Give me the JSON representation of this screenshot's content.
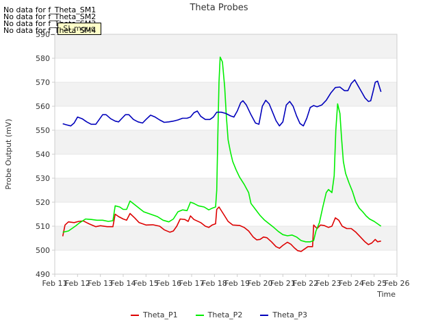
{
  "messages": [
    "No data for f_Theta_SM1",
    "No data for f_Theta_SM2",
    "No data for f_Theta_SM3",
    "No data for f_Theta_SM4"
  ],
  "badge": "SI_mguq",
  "chart_data": {
    "type": "line",
    "title": "Theta Probes",
    "xlabel": "Time",
    "ylabel": "Probe Output (mV)",
    "ylim": [
      490,
      590
    ],
    "yticks": [
      490,
      500,
      510,
      520,
      530,
      540,
      550,
      560,
      570,
      580,
      590
    ],
    "xlim": [
      11,
      26
    ],
    "xticks": [
      {
        "day": 11,
        "label": "Feb 11"
      },
      {
        "day": 12,
        "label": "Feb 12"
      },
      {
        "day": 13,
        "label": "Feb 13"
      },
      {
        "day": 14,
        "label": "Feb 14"
      },
      {
        "day": 15,
        "label": "Feb 15"
      },
      {
        "day": 16,
        "label": "Feb 16"
      },
      {
        "day": 17,
        "label": "Feb 17"
      },
      {
        "day": 18,
        "label": "Feb 18"
      },
      {
        "day": 19,
        "label": "Feb 19"
      },
      {
        "day": 20,
        "label": "Feb 20"
      },
      {
        "day": 21,
        "label": "Feb 21"
      },
      {
        "day": 22,
        "label": "Feb 22"
      },
      {
        "day": 23,
        "label": "Feb 23"
      },
      {
        "day": 24,
        "label": "Feb 24"
      },
      {
        "day": 25,
        "label": "Feb 25"
      },
      {
        "day": 26,
        "label": "Feb 26"
      }
    ],
    "grid": "horizontal bands",
    "legend_position": "bottom",
    "series": [
      {
        "name": "Theta_P1",
        "color": "#dd0000",
        "points": [
          [
            11.35,
            505.8
          ],
          [
            11.45,
            510.5
          ],
          [
            11.6,
            511.8
          ],
          [
            11.85,
            511.5
          ],
          [
            12.05,
            512.0
          ],
          [
            12.25,
            512.2
          ],
          [
            12.5,
            511.0
          ],
          [
            12.8,
            509.8
          ],
          [
            13.0,
            510.2
          ],
          [
            13.3,
            509.8
          ],
          [
            13.55,
            509.8
          ],
          [
            13.65,
            515.0
          ],
          [
            13.8,
            514.0
          ],
          [
            14.0,
            513.0
          ],
          [
            14.15,
            512.5
          ],
          [
            14.3,
            515.3
          ],
          [
            14.5,
            513.5
          ],
          [
            14.7,
            511.5
          ],
          [
            15.0,
            510.5
          ],
          [
            15.3,
            510.6
          ],
          [
            15.6,
            510.0
          ],
          [
            15.8,
            508.5
          ],
          [
            16.05,
            507.5
          ],
          [
            16.2,
            508.0
          ],
          [
            16.35,
            510.0
          ],
          [
            16.5,
            513.0
          ],
          [
            16.7,
            512.8
          ],
          [
            16.85,
            512.0
          ],
          [
            16.95,
            514.3
          ],
          [
            17.1,
            512.8
          ],
          [
            17.4,
            511.5
          ],
          [
            17.6,
            510.0
          ],
          [
            17.75,
            509.5
          ],
          [
            17.9,
            510.5
          ],
          [
            18.05,
            511.0
          ],
          [
            18.1,
            517.0
          ],
          [
            18.2,
            518.0
          ],
          [
            18.4,
            515.0
          ],
          [
            18.6,
            512.0
          ],
          [
            18.8,
            510.5
          ],
          [
            19.1,
            510.3
          ],
          [
            19.3,
            509.5
          ],
          [
            19.5,
            508.0
          ],
          [
            19.7,
            505.5
          ],
          [
            19.85,
            504.3
          ],
          [
            20.0,
            504.5
          ],
          [
            20.15,
            505.5
          ],
          [
            20.3,
            505.2
          ],
          [
            20.5,
            503.5
          ],
          [
            20.7,
            501.5
          ],
          [
            20.85,
            500.8
          ],
          [
            21.0,
            502.0
          ],
          [
            21.2,
            503.3
          ],
          [
            21.35,
            502.5
          ],
          [
            21.5,
            501.0
          ],
          [
            21.65,
            499.8
          ],
          [
            21.8,
            499.5
          ],
          [
            21.95,
            500.5
          ],
          [
            22.1,
            501.5
          ],
          [
            22.3,
            501.5
          ],
          [
            22.35,
            510.5
          ],
          [
            22.5,
            509.0
          ],
          [
            22.65,
            510.5
          ],
          [
            22.8,
            510.3
          ],
          [
            23.0,
            509.5
          ],
          [
            23.15,
            510.0
          ],
          [
            23.3,
            513.5
          ],
          [
            23.45,
            512.5
          ],
          [
            23.6,
            510.0
          ],
          [
            23.8,
            509.0
          ],
          [
            24.0,
            509.0
          ],
          [
            24.2,
            507.5
          ],
          [
            24.4,
            505.5
          ],
          [
            24.6,
            503.5
          ],
          [
            24.75,
            502.3
          ],
          [
            24.9,
            503.0
          ],
          [
            25.05,
            504.5
          ],
          [
            25.15,
            503.5
          ],
          [
            25.3,
            503.8
          ]
        ]
      },
      {
        "name": "Theta_P2",
        "color": "#00ee00",
        "points": [
          [
            11.35,
            507.5
          ],
          [
            11.6,
            508.0
          ],
          [
            11.9,
            510.0
          ],
          [
            12.1,
            511.5
          ],
          [
            12.35,
            513.0
          ],
          [
            12.6,
            512.8
          ],
          [
            12.85,
            512.5
          ],
          [
            13.1,
            512.5
          ],
          [
            13.35,
            512.0
          ],
          [
            13.55,
            512.3
          ],
          [
            13.65,
            518.5
          ],
          [
            13.85,
            518.0
          ],
          [
            14.0,
            517.0
          ],
          [
            14.15,
            517.0
          ],
          [
            14.3,
            520.5
          ],
          [
            14.5,
            519.0
          ],
          [
            14.7,
            517.5
          ],
          [
            14.9,
            516.0
          ],
          [
            15.2,
            515.0
          ],
          [
            15.5,
            514.0
          ],
          [
            15.75,
            512.5
          ],
          [
            16.0,
            511.8
          ],
          [
            16.2,
            513.0
          ],
          [
            16.4,
            516.0
          ],
          [
            16.6,
            516.8
          ],
          [
            16.8,
            516.5
          ],
          [
            16.95,
            520.0
          ],
          [
            17.1,
            519.5
          ],
          [
            17.3,
            518.5
          ],
          [
            17.55,
            518.0
          ],
          [
            17.75,
            516.8
          ],
          [
            17.9,
            517.5
          ],
          [
            18.05,
            518.0
          ],
          [
            18.1,
            525.0
          ],
          [
            18.15,
            548.0
          ],
          [
            18.2,
            570.0
          ],
          [
            18.25,
            580.5
          ],
          [
            18.35,
            578.5
          ],
          [
            18.45,
            568.0
          ],
          [
            18.52,
            556.0
          ],
          [
            18.6,
            546.0
          ],
          [
            18.7,
            541.0
          ],
          [
            18.8,
            537.0
          ],
          [
            18.95,
            533.5
          ],
          [
            19.1,
            530.5
          ],
          [
            19.3,
            527.5
          ],
          [
            19.5,
            524.0
          ],
          [
            19.6,
            519.5
          ],
          [
            19.8,
            517.0
          ],
          [
            20.0,
            514.5
          ],
          [
            20.2,
            512.5
          ],
          [
            20.4,
            511.0
          ],
          [
            20.6,
            509.5
          ],
          [
            20.8,
            507.8
          ],
          [
            21.0,
            506.5
          ],
          [
            21.2,
            506.0
          ],
          [
            21.4,
            506.3
          ],
          [
            21.6,
            505.5
          ],
          [
            21.8,
            504.0
          ],
          [
            22.0,
            503.5
          ],
          [
            22.2,
            503.5
          ],
          [
            22.35,
            504.0
          ],
          [
            22.45,
            508.0
          ],
          [
            22.6,
            511.5
          ],
          [
            22.75,
            518.0
          ],
          [
            22.9,
            524.0
          ],
          [
            23.0,
            525.3
          ],
          [
            23.15,
            524.0
          ],
          [
            23.25,
            531.0
          ],
          [
            23.32,
            550.0
          ],
          [
            23.4,
            561.0
          ],
          [
            23.5,
            557.0
          ],
          [
            23.57,
            547.0
          ],
          [
            23.65,
            537.0
          ],
          [
            23.75,
            532.0
          ],
          [
            23.9,
            528.0
          ],
          [
            24.05,
            524.5
          ],
          [
            24.2,
            520.0
          ],
          [
            24.35,
            517.5
          ],
          [
            24.5,
            516.0
          ],
          [
            24.65,
            514.3
          ],
          [
            24.8,
            513.0
          ],
          [
            25.0,
            512.0
          ],
          [
            25.15,
            511.0
          ],
          [
            25.3,
            510.0
          ]
        ]
      },
      {
        "name": "Theta_P3",
        "color": "#0000bb",
        "points": [
          [
            11.35,
            552.7
          ],
          [
            11.5,
            552.3
          ],
          [
            11.7,
            551.8
          ],
          [
            11.85,
            553.0
          ],
          [
            12.0,
            555.5
          ],
          [
            12.2,
            554.8
          ],
          [
            12.4,
            553.5
          ],
          [
            12.6,
            552.5
          ],
          [
            12.8,
            552.5
          ],
          [
            12.95,
            554.5
          ],
          [
            13.1,
            556.5
          ],
          [
            13.25,
            556.5
          ],
          [
            13.45,
            554.8
          ],
          [
            13.65,
            553.8
          ],
          [
            13.8,
            553.5
          ],
          [
            13.95,
            555.0
          ],
          [
            14.1,
            556.5
          ],
          [
            14.25,
            556.5
          ],
          [
            14.45,
            554.5
          ],
          [
            14.65,
            553.5
          ],
          [
            14.85,
            553.0
          ],
          [
            15.0,
            554.5
          ],
          [
            15.2,
            556.3
          ],
          [
            15.4,
            555.5
          ],
          [
            15.6,
            554.3
          ],
          [
            15.8,
            553.3
          ],
          [
            16.0,
            553.5
          ],
          [
            16.2,
            553.8
          ],
          [
            16.4,
            554.3
          ],
          [
            16.6,
            555.0
          ],
          [
            16.8,
            555.0
          ],
          [
            16.95,
            555.5
          ],
          [
            17.1,
            557.3
          ],
          [
            17.25,
            558.0
          ],
          [
            17.4,
            555.8
          ],
          [
            17.6,
            554.5
          ],
          [
            17.8,
            554.5
          ],
          [
            17.95,
            555.5
          ],
          [
            18.1,
            557.5
          ],
          [
            18.3,
            557.5
          ],
          [
            18.5,
            557.0
          ],
          [
            18.7,
            556.0
          ],
          [
            18.85,
            555.5
          ],
          [
            19.0,
            558.0
          ],
          [
            19.15,
            561.5
          ],
          [
            19.25,
            562.3
          ],
          [
            19.4,
            560.5
          ],
          [
            19.6,
            556.5
          ],
          [
            19.8,
            553.0
          ],
          [
            19.95,
            552.5
          ],
          [
            20.1,
            560.0
          ],
          [
            20.25,
            562.5
          ],
          [
            20.4,
            561.0
          ],
          [
            20.55,
            557.5
          ],
          [
            20.7,
            554.0
          ],
          [
            20.85,
            551.8
          ],
          [
            21.0,
            553.5
          ],
          [
            21.15,
            560.5
          ],
          [
            21.3,
            562.0
          ],
          [
            21.45,
            560.0
          ],
          [
            21.6,
            556.0
          ],
          [
            21.75,
            552.8
          ],
          [
            21.9,
            551.8
          ],
          [
            22.05,
            555.0
          ],
          [
            22.2,
            559.5
          ],
          [
            22.35,
            560.3
          ],
          [
            22.5,
            559.8
          ],
          [
            22.7,
            560.5
          ],
          [
            22.9,
            562.5
          ],
          [
            23.1,
            565.5
          ],
          [
            23.3,
            567.8
          ],
          [
            23.5,
            568.0
          ],
          [
            23.7,
            566.5
          ],
          [
            23.85,
            566.5
          ],
          [
            24.0,
            569.5
          ],
          [
            24.15,
            571.0
          ],
          [
            24.3,
            568.5
          ],
          [
            24.45,
            566.0
          ],
          [
            24.6,
            563.5
          ],
          [
            24.75,
            562.0
          ],
          [
            24.85,
            562.3
          ],
          [
            24.95,
            566.0
          ],
          [
            25.05,
            570.0
          ],
          [
            25.15,
            570.5
          ],
          [
            25.3,
            566.0
          ]
        ]
      }
    ]
  }
}
